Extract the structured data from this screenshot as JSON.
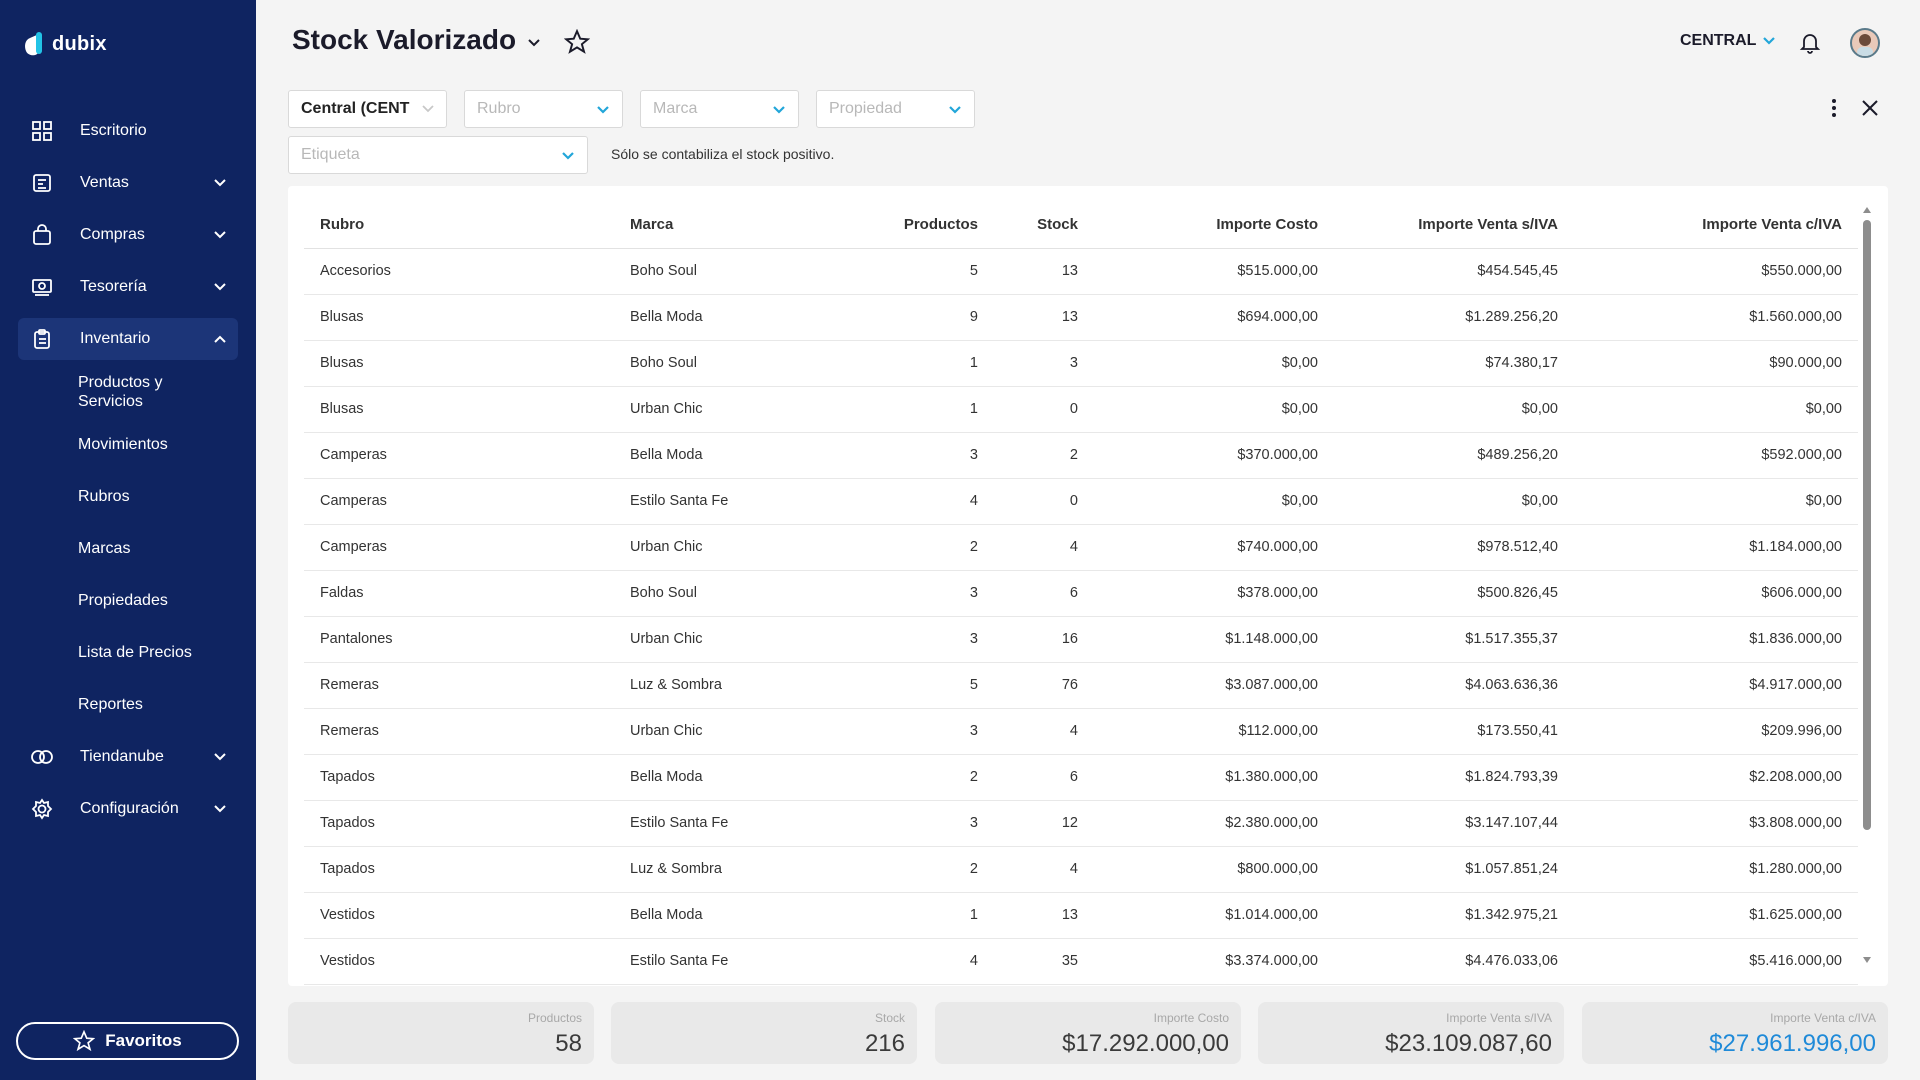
{
  "app": {
    "name": "dubix"
  },
  "sidebar": {
    "items": [
      {
        "label": "Escritorio"
      },
      {
        "label": "Ventas"
      },
      {
        "label": "Compras"
      },
      {
        "label": "Tesorería"
      },
      {
        "label": "Inventario"
      },
      {
        "label": "Tiendanube"
      },
      {
        "label": "Configuración"
      }
    ],
    "inventario_sub": [
      "Productos y Servicios",
      "Movimientos",
      "Rubros",
      "Marcas",
      "Propiedades",
      "Lista de Precios",
      "Reportes"
    ],
    "favorites_label": "Favoritos"
  },
  "header": {
    "title": "Stock Valorizado",
    "branch": "CENTRAL"
  },
  "filters": {
    "deposito": "Central (CENT",
    "rubro_placeholder": "Rubro",
    "marca_placeholder": "Marca",
    "propiedad_placeholder": "Propiedad",
    "etiqueta_placeholder": "Etiqueta",
    "note": "Sólo se contabiliza el stock positivo."
  },
  "table": {
    "headers": [
      "Rubro",
      "Marca",
      "Productos",
      "Stock",
      "Importe Costo",
      "Importe Venta s/IVA",
      "Importe Venta c/IVA"
    ],
    "rows": [
      [
        "Accesorios",
        "Boho Soul",
        "5",
        "13",
        "$515.000,00",
        "$454.545,45",
        "$550.000,00"
      ],
      [
        "Blusas",
        "Bella Moda",
        "9",
        "13",
        "$694.000,00",
        "$1.289.256,20",
        "$1.560.000,00"
      ],
      [
        "Blusas",
        "Boho Soul",
        "1",
        "3",
        "$0,00",
        "$74.380,17",
        "$90.000,00"
      ],
      [
        "Blusas",
        "Urban Chic",
        "1",
        "0",
        "$0,00",
        "$0,00",
        "$0,00"
      ],
      [
        "Camperas",
        "Bella Moda",
        "3",
        "2",
        "$370.000,00",
        "$489.256,20",
        "$592.000,00"
      ],
      [
        "Camperas",
        "Estilo Santa Fe",
        "4",
        "0",
        "$0,00",
        "$0,00",
        "$0,00"
      ],
      [
        "Camperas",
        "Urban Chic",
        "2",
        "4",
        "$740.000,00",
        "$978.512,40",
        "$1.184.000,00"
      ],
      [
        "Faldas",
        "Boho Soul",
        "3",
        "6",
        "$378.000,00",
        "$500.826,45",
        "$606.000,00"
      ],
      [
        "Pantalones",
        "Urban Chic",
        "3",
        "16",
        "$1.148.000,00",
        "$1.517.355,37",
        "$1.836.000,00"
      ],
      [
        "Remeras",
        "Luz & Sombra",
        "5",
        "76",
        "$3.087.000,00",
        "$4.063.636,36",
        "$4.917.000,00"
      ],
      [
        "Remeras",
        "Urban Chic",
        "3",
        "4",
        "$112.000,00",
        "$173.550,41",
        "$209.996,00"
      ],
      [
        "Tapados",
        "Bella Moda",
        "2",
        "6",
        "$1.380.000,00",
        "$1.824.793,39",
        "$2.208.000,00"
      ],
      [
        "Tapados",
        "Estilo Santa Fe",
        "3",
        "12",
        "$2.380.000,00",
        "$3.147.107,44",
        "$3.808.000,00"
      ],
      [
        "Tapados",
        "Luz & Sombra",
        "2",
        "4",
        "$800.000,00",
        "$1.057.851,24",
        "$1.280.000,00"
      ],
      [
        "Vestidos",
        "Bella Moda",
        "1",
        "13",
        "$1.014.000,00",
        "$1.342.975,21",
        "$1.625.000,00"
      ],
      [
        "Vestidos",
        "Estilo Santa Fe",
        "4",
        "35",
        "$3.374.000,00",
        "$4.476.033,06",
        "$5.416.000,00"
      ]
    ]
  },
  "summary": [
    {
      "label": "Productos",
      "value": "58"
    },
    {
      "label": "Stock",
      "value": "216"
    },
    {
      "label": "Importe Costo",
      "value": "$17.292.000,00"
    },
    {
      "label": "Importe Venta s/IVA",
      "value": "$23.109.087,60"
    },
    {
      "label": "Importe Venta c/IVA",
      "value": "$27.961.996,00"
    }
  ],
  "colors": {
    "sidebar_bg": "#0f2461",
    "accent": "#1f8ad8",
    "logo_cyan": "#22c3e6"
  },
  "icons": [
    "desk-grid-icon",
    "sales-icon",
    "bag-icon",
    "treasury-icon",
    "clipboard-icon",
    "cloud-link-icon",
    "gear-icon",
    "star-icon",
    "bell-icon",
    "chevron-down-icon",
    "kebab-icon",
    "close-icon"
  ]
}
